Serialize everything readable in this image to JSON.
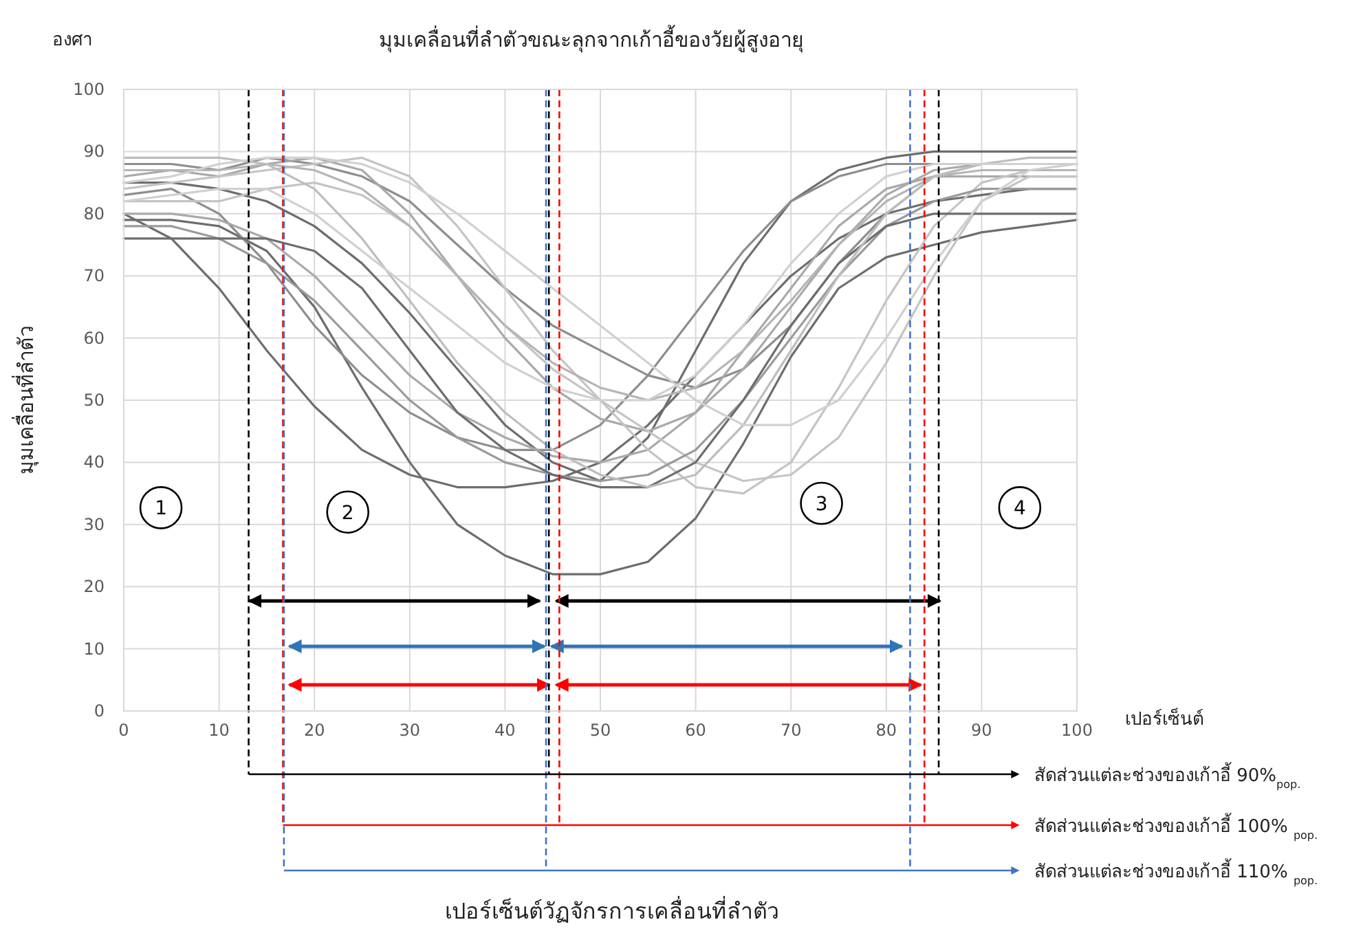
{
  "chart_data": {
    "type": "line",
    "title": "มุมเคลื่อนที่ลำตัวขณะลุกจากเก้าอี้ของวัยผู้สูงอายุ",
    "xlabel": "เปอร์เซ็นต์",
    "ylabel": "มุมเคลื่อนที่ลำตัว",
    "x": [
      0,
      5,
      10,
      15,
      20,
      25,
      30,
      35,
      40,
      45,
      50,
      55,
      60,
      65,
      70,
      75,
      80,
      85,
      90,
      95,
      100
    ],
    "xlim": [
      0,
      100
    ],
    "ylim": [
      0,
      100
    ],
    "xticks": [
      0,
      10,
      20,
      30,
      40,
      50,
      60,
      70,
      80,
      90,
      100
    ],
    "yticks": [
      0,
      10,
      20,
      30,
      40,
      50,
      60,
      70,
      80,
      90,
      100
    ],
    "grid": true,
    "series": [
      {
        "color": "#6d6d6d",
        "values": [
          80,
          76,
          68,
          58,
          49,
          42,
          38,
          36,
          36,
          37,
          40,
          46,
          54,
          62,
          70,
          76,
          80,
          82,
          83,
          84,
          84
        ]
      },
      {
        "color": "#6d6d6d",
        "values": [
          79,
          79,
          78,
          74,
          65,
          52,
          40,
          30,
          25,
          22,
          22,
          24,
          31,
          43,
          57,
          68,
          73,
          75,
          77,
          78,
          79
        ]
      },
      {
        "color": "#6d6d6d",
        "values": [
          85,
          85,
          84,
          82,
          78,
          72,
          64,
          55,
          46,
          40,
          37,
          44,
          58,
          72,
          82,
          87,
          89,
          90,
          90,
          90,
          90
        ]
      },
      {
        "color": "#8e8e8e",
        "values": [
          88,
          88,
          87,
          89,
          88,
          86,
          82,
          75,
          68,
          62,
          58,
          54,
          52,
          55,
          62,
          72,
          80,
          86,
          88,
          88,
          88
        ]
      },
      {
        "color": "#8e8e8e",
        "values": [
          83,
          84,
          80,
          72,
          62,
          54,
          48,
          44,
          42,
          42,
          46,
          54,
          64,
          74,
          82,
          86,
          88,
          88,
          88,
          88,
          88
        ]
      },
      {
        "color": "#a9a9a9",
        "values": [
          86,
          87,
          86,
          88,
          89,
          87,
          80,
          70,
          60,
          52,
          47,
          45,
          48,
          55,
          65,
          75,
          83,
          87,
          88,
          88,
          88
        ]
      },
      {
        "color": "#a9a9a9",
        "values": [
          80,
          80,
          79,
          76,
          70,
          62,
          54,
          48,
          44,
          41,
          40,
          42,
          48,
          58,
          68,
          78,
          84,
          86,
          86,
          86,
          86
        ]
      },
      {
        "color": "#c4c4c4",
        "values": [
          84,
          85,
          86,
          87,
          88,
          89,
          86,
          78,
          68,
          58,
          50,
          42,
          36,
          35,
          40,
          52,
          66,
          78,
          85,
          87,
          87
        ]
      },
      {
        "color": "#c4c4c4",
        "values": [
          82,
          82,
          82,
          84,
          85,
          83,
          78,
          70,
          62,
          55,
          50,
          45,
          40,
          37,
          38,
          44,
          56,
          70,
          82,
          86,
          86
        ]
      },
      {
        "color": "#b5b5b5",
        "values": [
          87,
          87,
          87,
          88,
          87,
          84,
          78,
          70,
          62,
          56,
          52,
          50,
          52,
          58,
          66,
          75,
          82,
          86,
          87,
          87,
          87
        ]
      },
      {
        "color": "#9a9a9a",
        "values": [
          78,
          78,
          76,
          72,
          66,
          58,
          50,
          44,
          40,
          38,
          37,
          38,
          42,
          50,
          60,
          70,
          78,
          82,
          84,
          84,
          84
        ]
      },
      {
        "color": "#6d6d6d",
        "values": [
          76,
          76,
          76,
          76,
          74,
          68,
          58,
          48,
          42,
          38,
          36,
          36,
          40,
          50,
          62,
          72,
          78,
          80,
          80,
          80,
          80
        ]
      },
      {
        "color": "#bdbdbd",
        "values": [
          89,
          89,
          89,
          88,
          84,
          76,
          66,
          56,
          48,
          42,
          38,
          36,
          38,
          46,
          58,
          70,
          80,
          86,
          88,
          89,
          89
        ]
      },
      {
        "color": "#d0d0d0",
        "values": [
          85,
          86,
          88,
          89,
          89,
          88,
          85,
          80,
          74,
          68,
          62,
          56,
          50,
          46,
          46,
          50,
          60,
          72,
          82,
          87,
          88
        ]
      },
      {
        "color": "#d0d0d0",
        "values": [
          82,
          83,
          84,
          84,
          80,
          74,
          68,
          62,
          56,
          52,
          50,
          50,
          54,
          62,
          72,
          80,
          86,
          88,
          88,
          88,
          88
        ]
      },
      {
        "color": "#000000",
        "x": [
          13.3,
          43.5
        ],
        "values": [
          17.7,
          17.7
        ]
      },
      {
        "color": "#000000",
        "x": [
          45.5,
          85.5
        ],
        "values": [
          17.7,
          17.7
        ]
      },
      {
        "color": "#2e75b6",
        "x": [
          17.5,
          44
        ],
        "values": [
          10.4,
          10.4
        ]
      },
      {
        "color": "#2e75b6",
        "x": [
          45,
          81.5
        ],
        "values": [
          10.4,
          10.4
        ]
      },
      {
        "color": "#ff0000",
        "x": [
          17.5,
          44.5
        ],
        "values": [
          4.2,
          4.2
        ]
      },
      {
        "color": "#ff0000",
        "x": [
          45.5,
          83.5
        ],
        "values": [
          4.2,
          4.2
        ]
      }
    ],
    "ref_lines": [
      {
        "axis": "x",
        "value": 13.1,
        "color": "#000000",
        "line_style": "dashed"
      },
      {
        "axis": "x",
        "value": 44.6,
        "color": "#000000",
        "line_style": "dashed"
      },
      {
        "axis": "x",
        "value": 85.5,
        "color": "#000000",
        "line_style": "dashed"
      },
      {
        "axis": "x",
        "value": 16.7,
        "color": "#ff0000",
        "line_style": "dashed"
      },
      {
        "axis": "x",
        "value": 45.7,
        "color": "#ff0000",
        "line_style": "dashed"
      },
      {
        "axis": "x",
        "value": 84,
        "color": "#ff0000",
        "line_style": "dashed"
      },
      {
        "axis": "x",
        "value": 16.8,
        "color": "#4472c4",
        "line_style": "dashed"
      },
      {
        "axis": "x",
        "value": 44.3,
        "color": "#4472c4",
        "line_style": "dashed"
      },
      {
        "axis": "x",
        "value": 82.5,
        "color": "#4472c4",
        "line_style": "dashed"
      }
    ],
    "annotations": [
      {
        "text": "1",
        "x": 3.9,
        "y": 32.7
      },
      {
        "text": "2",
        "x": 23.5,
        "y": 32
      },
      {
        "text": "3",
        "x": 73.2,
        "y": 33.4
      },
      {
        "text": "4",
        "x": 94,
        "y": 32.7
      },
      "องศา",
      "สัดส่วนแต่ละช่วงของเก้าอี้ 90%$_{pop.}$",
      "สัดส่วนแต่ละช่วงของเก้าอี้ 100% $_{pop.}$",
      "สัดส่วนแต่ละช่วงของเก้าอี้ 110% $_{pop.}$",
      "เปอร์เซ็นต์วัฏจักรการเคลื่อนที่ลำตัว"
    ]
  }
}
